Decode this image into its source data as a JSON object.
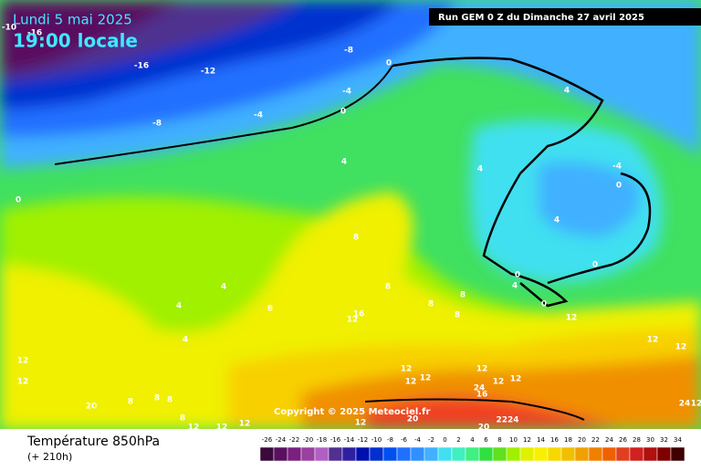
{
  "header": {
    "date": "Lundi 5 mai 2025",
    "time": "19:00 locale",
    "run": "Run GEM 0 Z du Dimanche 27 avril 2025"
  },
  "copyright": "Copyright © 2025 Meteociel.fr",
  "footer": {
    "title": "Température 850hPa",
    "subtitle": "(+ 210h)"
  },
  "scale": {
    "values": [
      -26,
      -24,
      -22,
      -20,
      -18,
      -16,
      -14,
      -12,
      -10,
      -8,
      -6,
      -4,
      -2,
      0,
      2,
      4,
      6,
      8,
      10,
      12,
      14,
      16,
      18,
      20,
      22,
      24,
      26,
      28,
      30,
      32,
      34
    ],
    "colors": [
      "#3a0a3a",
      "#5a1060",
      "#7a2080",
      "#9a40a0",
      "#b060c0",
      "#503090",
      "#3020a0",
      "#0010b0",
      "#0030d0",
      "#0050f0",
      "#2070ff",
      "#3090ff",
      "#40b0ff",
      "#40e0f0",
      "#40f0c0",
      "#40f080",
      "#30e040",
      "#60e020",
      "#a0f000",
      "#e0f000",
      "#f8f000",
      "#f8d800",
      "#f0c000",
      "#f0a000",
      "#f08000",
      "#f06000",
      "#e04020",
      "#d02020",
      "#b01010",
      "#800000",
      "#400000"
    ]
  },
  "contour_labels": [
    "-10",
    "-16",
    "-16",
    "-12",
    "-8",
    "0",
    "-8",
    "-4",
    "-4",
    "0",
    "4",
    "4",
    "4",
    "0",
    "8",
    "4",
    "4",
    "4",
    "8",
    "8",
    "8",
    "8",
    "8",
    "4",
    "-4",
    "0",
    "0",
    "0",
    "0",
    "4",
    "12",
    "12",
    "12",
    "12",
    "12",
    "12",
    "12",
    "12",
    "12",
    "12",
    "12",
    "12",
    "16",
    "20",
    "8",
    "8",
    "8",
    "8",
    "12",
    "12",
    "12",
    "12",
    "20",
    "24",
    "20",
    "2224",
    "24",
    "12",
    "16"
  ]
}
